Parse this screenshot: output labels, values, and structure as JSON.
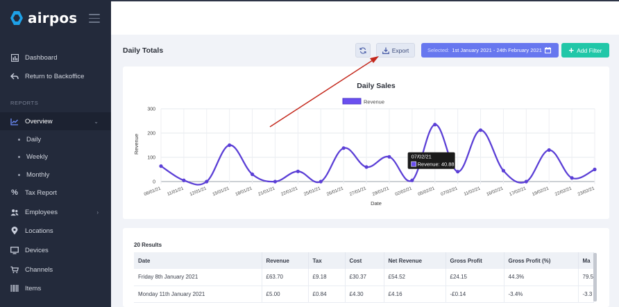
{
  "app": {
    "name": "airpos",
    "brand_color": "#1ea1e8"
  },
  "sidebar": {
    "items_top": [
      {
        "label": "Dashboard",
        "icon": "dashboard-icon"
      },
      {
        "label": "Return to Backoffice",
        "icon": "return-icon"
      }
    ],
    "section_label": "REPORTS",
    "overview": {
      "label": "Overview",
      "icon": "chart-line-icon"
    },
    "sub_items": [
      "Daily",
      "Weekly",
      "Monthly"
    ],
    "items_bottom": [
      {
        "label": "Tax Report",
        "icon": "percent-icon"
      },
      {
        "label": "Employees",
        "icon": "users-icon"
      },
      {
        "label": "Locations",
        "icon": "location-pin-icon"
      },
      {
        "label": "Devices",
        "icon": "monitor-icon"
      },
      {
        "label": "Channels",
        "icon": "cart-icon"
      },
      {
        "label": "Items",
        "icon": "barcode-icon"
      }
    ]
  },
  "header": {
    "title": "Daily Totals",
    "export_label": "Export",
    "date_prefix": "Selected:",
    "date_range": "1st January 2021 - 24th February 2021",
    "add_filter_label": "Add Filter",
    "accent": "#6777ef",
    "filter_color": "#21c7a8"
  },
  "chart_data": {
    "type": "line",
    "title": "Daily Sales",
    "xlabel": "Date",
    "ylabel": "Revenue",
    "ylim": [
      0,
      300
    ],
    "yticks": [
      "0",
      "100",
      "200",
      "300"
    ],
    "legend": {
      "label": "Revenue",
      "position": "top-center"
    },
    "series_color": "#5b3fd6",
    "grid": true,
    "x_tick_labels": [
      "08/01/21",
      "11/01/21",
      "12/01/21",
      "15/01/21",
      "18/01/21",
      "21/01/21",
      "22/01/21",
      "25/01/21",
      "26/01/21",
      "27/01/21",
      "29/01/21",
      "02/02/21",
      "05/02/21",
      "07/02/21",
      "11/02/21",
      "16/02/21",
      "17/02/21",
      "19/02/21",
      "22/02/21",
      "23/02/21"
    ],
    "series": [
      {
        "name": "Revenue",
        "x": [
          "08/01/21",
          "11/01/21",
          "12/01/21",
          "15/01/21",
          "18/01/21",
          "21/01/21",
          "22/01/21",
          "25/01/21",
          "26/01/21",
          "27/01/21",
          "29/01/21",
          "02/02/21",
          "05/02/21",
          "07/02/21",
          "11/02/21",
          "16/02/21",
          "17/02/21",
          "19/02/21",
          "22/02/21",
          "23/02/21"
        ],
        "values": [
          63.7,
          5,
          0,
          150,
          30,
          0,
          42,
          0,
          138,
          60,
          102,
          5,
          235,
          40.88,
          212,
          45,
          0,
          130,
          15,
          50
        ]
      }
    ],
    "tooltip": {
      "date": "07/02/21",
      "text": "Revenue: 40.88"
    }
  },
  "results": {
    "count_label": "20 Results",
    "columns": [
      "Date",
      "Revenue",
      "Tax",
      "Cost",
      "Net Revenue",
      "Gross Profit",
      "Gross Profit (%)",
      "Ma"
    ],
    "rows": [
      [
        "Friday 8th January 2021",
        "£63.70",
        "£9.18",
        "£30.37",
        "£54.52",
        "£24.15",
        "44.3%",
        "79.5"
      ],
      [
        "Monday 11th January 2021",
        "£5.00",
        "£0.84",
        "£4.30",
        "£4.16",
        "-£0.14",
        "-3.4%",
        "-3.3"
      ]
    ]
  }
}
